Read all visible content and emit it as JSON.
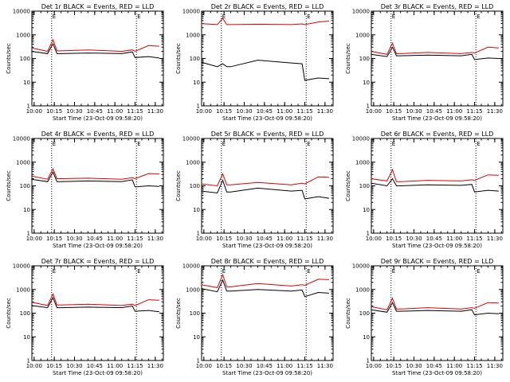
{
  "chart_data": [
    {
      "type": "line",
      "title": "Det 1r BLACK = Events, RED = LLD",
      "ylabel": "Counts/sec",
      "xlabel": "Start Time (23-Oct-09 09:58:20)",
      "yscale": "log",
      "ylim": [
        1,
        10000
      ],
      "yticks": [
        "1",
        "10",
        "100",
        "1000",
        "10000"
      ],
      "xticks": [
        "10:00",
        "10:15",
        "10:30",
        "10:45",
        "11:00",
        "11:15",
        "11:30"
      ],
      "x": [
        "09:58",
        "10:10",
        "10:14",
        "10:17",
        "10:20",
        "10:40",
        "11:05",
        "11:13",
        "11:15",
        "11:25",
        "11:33"
      ],
      "markers": [
        {
          "time": "10:13",
          "label": "E"
        },
        {
          "time": "11:16",
          "label": "E"
        }
      ],
      "grid": false,
      "legend": "none",
      "series": [
        {
          "color": "#000000",
          "values": [
            200,
            160,
            420,
            160,
            160,
            170,
            160,
            190,
            110,
            120,
            105
          ]
        },
        {
          "color": "#e00000",
          "values": [
            280,
            200,
            620,
            210,
            210,
            230,
            200,
            230,
            200,
            350,
            330
          ]
        }
      ]
    },
    {
      "type": "line",
      "title": "Det 2r BLACK = Events, RED = LLD",
      "ylabel": "Counts/sec",
      "xlabel": "Start Time (23-Oct-09 09:58:20)",
      "yscale": "log",
      "ylim": [
        1,
        10000
      ],
      "yticks": [
        "1",
        "10",
        "100",
        "1000",
        "10000"
      ],
      "xticks": [
        "10:00",
        "10:15",
        "10:30",
        "10:45",
        "11:00",
        "11:15",
        "11:30"
      ],
      "x": [
        "09:58",
        "10:10",
        "10:14",
        "10:17",
        "10:20",
        "10:40",
        "11:05",
        "11:13",
        "11:15",
        "11:25",
        "11:33"
      ],
      "markers": [
        {
          "time": "10:13",
          "label": "E"
        },
        {
          "time": "11:16",
          "label": "E"
        }
      ],
      "grid": false,
      "legend": "none",
      "series": [
        {
          "color": "#000000",
          "values": [
            70,
            45,
            60,
            45,
            45,
            85,
            65,
            60,
            12,
            15,
            14
          ]
        },
        {
          "color": "#e00000",
          "values": [
            3000,
            2700,
            5000,
            2700,
            2700,
            2800,
            2700,
            2900,
            2700,
            3500,
            3800
          ]
        }
      ]
    },
    {
      "type": "line",
      "title": "Det 3r BLACK = Events, RED = LLD",
      "ylabel": "Counts/sec",
      "xlabel": "Start Time (23-Oct-09 09:58:20)",
      "yscale": "log",
      "ylim": [
        1,
        10000
      ],
      "yticks": [
        "1",
        "10",
        "100",
        "1000",
        "10000"
      ],
      "xticks": [
        "10:00",
        "10:15",
        "10:30",
        "10:45",
        "11:00",
        "11:15",
        "11:30"
      ],
      "x": [
        "09:58",
        "10:10",
        "10:14",
        "10:17",
        "10:20",
        "10:40",
        "11:05",
        "11:13",
        "11:15",
        "11:25",
        "11:33"
      ],
      "markers": [
        {
          "time": "10:13",
          "label": "E"
        },
        {
          "time": "11:16",
          "label": "E"
        }
      ],
      "grid": false,
      "legend": "none",
      "series": [
        {
          "color": "#000000",
          "values": [
            150,
            120,
            300,
            130,
            130,
            140,
            130,
            150,
            90,
            105,
            100
          ]
        },
        {
          "color": "#e00000",
          "values": [
            200,
            150,
            450,
            160,
            160,
            180,
            160,
            180,
            170,
            300,
            280
          ]
        }
      ]
    },
    {
      "type": "line",
      "title": "Det 4r BLACK = Events, RED = LLD",
      "ylabel": "Counts/sec",
      "xlabel": "Start Time (23-Oct-09 09:58:20)",
      "yscale": "log",
      "ylim": [
        1,
        10000
      ],
      "yticks": [
        "1",
        "10",
        "100",
        "1000",
        "10000"
      ],
      "xticks": [
        "10:00",
        "10:15",
        "10:30",
        "10:45",
        "11:00",
        "11:15",
        "11:30"
      ],
      "x": [
        "09:58",
        "10:10",
        "10:14",
        "10:17",
        "10:20",
        "10:40",
        "11:05",
        "11:13",
        "11:15",
        "11:25",
        "11:33"
      ],
      "markers": [
        {
          "time": "10:13",
          "label": "E"
        },
        {
          "time": "11:16",
          "label": "E"
        }
      ],
      "grid": false,
      "legend": "none",
      "series": [
        {
          "color": "#000000",
          "values": [
            190,
            150,
            380,
            150,
            150,
            160,
            150,
            180,
            90,
            100,
            95
          ]
        },
        {
          "color": "#e00000",
          "values": [
            260,
            190,
            520,
            200,
            200,
            210,
            190,
            220,
            200,
            330,
            320
          ]
        }
      ]
    },
    {
      "type": "line",
      "title": "Det 5r BLACK = Events, RED = LLD",
      "ylabel": "Counts/sec",
      "xlabel": "Start Time (23-Oct-09 09:58:20)",
      "yscale": "log",
      "ylim": [
        1,
        10000
      ],
      "yticks": [
        "1",
        "10",
        "100",
        "1000",
        "10000"
      ],
      "xticks": [
        "10:00",
        "10:15",
        "10:30",
        "10:45",
        "11:00",
        "11:15",
        "11:30"
      ],
      "x": [
        "09:58",
        "10:10",
        "10:14",
        "10:17",
        "10:20",
        "10:40",
        "11:05",
        "11:13",
        "11:15",
        "11:25",
        "11:33"
      ],
      "markers": [
        {
          "time": "10:13",
          "label": "E"
        },
        {
          "time": "11:16",
          "label": "E"
        }
      ],
      "grid": false,
      "legend": "none",
      "series": [
        {
          "color": "#000000",
          "values": [
            60,
            50,
            170,
            55,
            55,
            80,
            60,
            65,
            28,
            35,
            30
          ]
        },
        {
          "color": "#e00000",
          "values": [
            120,
            100,
            320,
            110,
            110,
            140,
            110,
            130,
            120,
            240,
            230
          ]
        }
      ]
    },
    {
      "type": "line",
      "title": "Det 6r BLACK = Events, RED = LLD",
      "ylabel": "Counts/sec",
      "xlabel": "Start Time (23-Oct-09 09:58:20)",
      "yscale": "log",
      "ylim": [
        1,
        10000
      ],
      "yticks": [
        "1",
        "10",
        "100",
        "1000",
        "10000"
      ],
      "xticks": [
        "10:00",
        "10:15",
        "10:30",
        "10:45",
        "11:00",
        "11:15",
        "11:30"
      ],
      "x": [
        "09:58",
        "10:10",
        "10:14",
        "10:17",
        "10:20",
        "10:40",
        "11:05",
        "11:13",
        "11:15",
        "11:25",
        "11:33"
      ],
      "markers": [
        {
          "time": "10:13",
          "label": "E"
        },
        {
          "time": "11:16",
          "label": "E"
        }
      ],
      "grid": false,
      "legend": "none",
      "series": [
        {
          "color": "#000000",
          "values": [
            130,
            100,
            200,
            100,
            100,
            110,
            105,
            115,
            55,
            65,
            60
          ]
        },
        {
          "color": "#e00000",
          "values": [
            200,
            160,
            480,
            150,
            150,
            170,
            160,
            180,
            170,
            290,
            280
          ]
        }
      ]
    },
    {
      "type": "line",
      "title": "Det 7r BLACK = Events, RED = LLD",
      "ylabel": "Counts/sec",
      "xlabel": "Start Time (23-Oct-09 09:58:20)",
      "yscale": "log",
      "ylim": [
        1,
        10000
      ],
      "yticks": [
        "1",
        "10",
        "100",
        "1000",
        "10000"
      ],
      "xticks": [
        "10:00",
        "10:15",
        "10:30",
        "10:45",
        "11:00",
        "11:15",
        "11:30"
      ],
      "x": [
        "09:58",
        "10:10",
        "10:14",
        "10:17",
        "10:20",
        "10:40",
        "11:05",
        "11:13",
        "11:15",
        "11:25",
        "11:33"
      ],
      "markers": [
        {
          "time": "10:13",
          "label": "E"
        },
        {
          "time": "11:16",
          "label": "E"
        }
      ],
      "grid": false,
      "legend": "none",
      "series": [
        {
          "color": "#000000",
          "values": [
            210,
            170,
            450,
            170,
            170,
            180,
            170,
            200,
            120,
            130,
            115
          ]
        },
        {
          "color": "#e00000",
          "values": [
            290,
            210,
            650,
            220,
            220,
            240,
            210,
            240,
            210,
            370,
            350
          ]
        }
      ]
    },
    {
      "type": "line",
      "title": "Det 8r BLACK = Events, RED = LLD",
      "ylabel": "Counts/sec",
      "xlabel": "Start Time (23-Oct-09 09:58:20)",
      "yscale": "log",
      "ylim": [
        1,
        10000
      ],
      "yticks": [
        "1",
        "10",
        "100",
        "1000",
        "10000"
      ],
      "xticks": [
        "10:00",
        "10:15",
        "10:30",
        "10:45",
        "11:00",
        "11:15",
        "11:30"
      ],
      "x": [
        "09:58",
        "10:10",
        "10:14",
        "10:17",
        "10:20",
        "10:40",
        "11:05",
        "11:13",
        "11:15",
        "11:25",
        "11:33"
      ],
      "markers": [
        {
          "time": "10:13",
          "label": "E"
        },
        {
          "time": "11:16",
          "label": "E"
        }
      ],
      "grid": false,
      "legend": "none",
      "series": [
        {
          "color": "#000000",
          "values": [
            1100,
            800,
            2500,
            850,
            850,
            1000,
            850,
            950,
            500,
            750,
            700
          ]
        },
        {
          "color": "#e00000",
          "values": [
            1600,
            1200,
            4200,
            1300,
            1300,
            1800,
            1400,
            1600,
            1500,
            2700,
            2600
          ]
        }
      ]
    },
    {
      "type": "line",
      "title": "Det 9r BLACK = Events, RED = LLD",
      "ylabel": "Counts/sec",
      "xlabel": "Start Time (23-Oct-09 09:58:20)",
      "yscale": "log",
      "ylim": [
        1,
        10000
      ],
      "yticks": [
        "1",
        "10",
        "100",
        "1000",
        "10000"
      ],
      "xticks": [
        "10:00",
        "10:15",
        "10:30",
        "10:45",
        "11:00",
        "11:15",
        "11:30"
      ],
      "x": [
        "09:58",
        "10:10",
        "10:14",
        "10:17",
        "10:20",
        "10:40",
        "11:05",
        "11:13",
        "11:15",
        "11:25",
        "11:33"
      ],
      "markers": [
        {
          "time": "10:13",
          "label": "E"
        },
        {
          "time": "11:16",
          "label": "E"
        }
      ],
      "grid": false,
      "legend": "none",
      "series": [
        {
          "color": "#000000",
          "values": [
            140,
            110,
            280,
            120,
            120,
            130,
            120,
            140,
            85,
            100,
            95
          ]
        },
        {
          "color": "#e00000",
          "values": [
            190,
            140,
            430,
            150,
            150,
            170,
            150,
            170,
            160,
            280,
            270
          ]
        }
      ]
    }
  ]
}
